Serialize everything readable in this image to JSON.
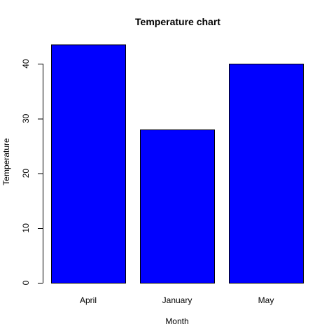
{
  "chart_data": {
    "type": "bar",
    "title": "Temperature chart",
    "xlabel": "Month",
    "ylabel": "Temperature",
    "categories": [
      "April",
      "January",
      "May"
    ],
    "values": [
      43.5,
      28,
      40
    ],
    "ylim": [
      0,
      45
    ],
    "yticks": [
      "0",
      "10",
      "20",
      "30",
      "40"
    ],
    "grid": false,
    "legend": "none",
    "bar_color": "#0000ff"
  }
}
